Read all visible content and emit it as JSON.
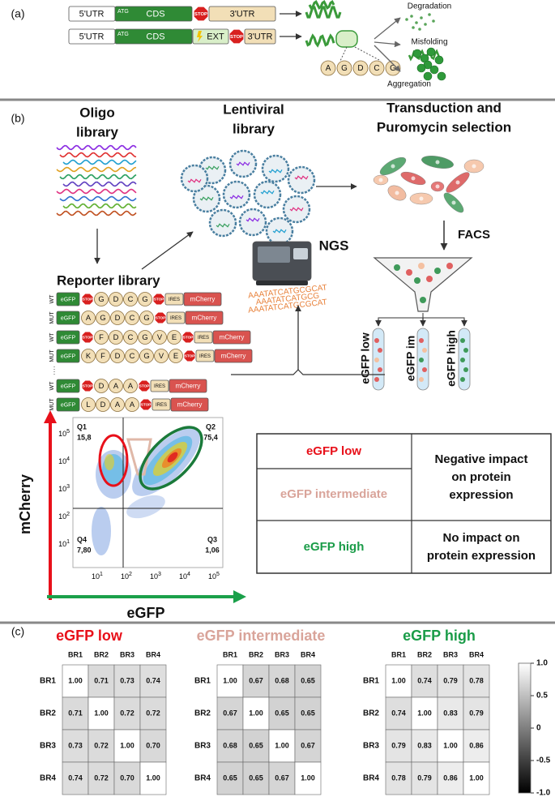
{
  "panel_a": {
    "label": "(a)",
    "construct_1": {
      "utr5": "5'UTR",
      "start": "ATG",
      "cds": "CDS",
      "stop": "STOP",
      "utr3": "3'UTR"
    },
    "construct_2": {
      "utr5": "5'UTR",
      "start": "ATG",
      "cds": "CDS",
      "ext": "EXT",
      "stop": "STOP",
      "utr3": "3'UTR"
    },
    "peptide": [
      "A",
      "G",
      "D",
      "C",
      "G"
    ],
    "outcomes": [
      "Degradation",
      "Misfolding",
      "Aggregation"
    ]
  },
  "panel_b": {
    "label": "(b)",
    "oligo_title": [
      "Oligo",
      "library"
    ],
    "lentiviral_title": [
      "Lentiviral",
      "library"
    ],
    "transduction_title": [
      "Transduction and",
      "Puromycin selection"
    ],
    "reporter_title": "Reporter library",
    "ngs": "NGS",
    "ngs_reads": [
      "AAATATCATGCGCAT",
      "AAATATCATGCG",
      "AAATATCATGCGCAT"
    ],
    "facs": "FACS",
    "bins": [
      "eGFP low",
      "eGFP im",
      "eGFP high"
    ],
    "reporters": [
      {
        "label": "WT",
        "tag": "eGFP",
        "lead_stop": "STOP",
        "residues": [
          "G",
          "D",
          "C",
          "G"
        ],
        "stop": "STOP",
        "ires": "IRES",
        "reporter": "mCherry"
      },
      {
        "label": "MUT",
        "tag": "eGFP",
        "lead_residue": "A",
        "residues": [
          "G",
          "D",
          "C",
          "G"
        ],
        "stop": "STOP",
        "ires": "IRES",
        "reporter": "mCherry"
      },
      {
        "label": "WT",
        "tag": "eGFP",
        "lead_stop": "STOP",
        "residues": [
          "F",
          "D",
          "C",
          "G",
          "V",
          "E"
        ],
        "stop": "STOP",
        "ires": "IRES",
        "reporter": "mCherry"
      },
      {
        "label": "MUT",
        "tag": "eGFP",
        "lead_residue": "K",
        "residues": [
          "F",
          "D",
          "C",
          "G",
          "V",
          "E"
        ],
        "stop": "STOP",
        "ires": "IRES",
        "reporter": "mCherry"
      },
      {
        "label": "WT",
        "tag": "eGFP",
        "lead_stop": "STOP",
        "residues": [
          "D",
          "A",
          "A"
        ],
        "stop": "STOP",
        "ires": "IRES",
        "reporter": "mCherry"
      },
      {
        "label": "MUT",
        "tag": "eGFP",
        "lead_residue": "L",
        "residues": [
          "D",
          "A",
          "A"
        ],
        "stop": "STOP",
        "ires": "IRES",
        "reporter": "mCherry"
      }
    ],
    "flow_plot": {
      "y_label": "mCherry",
      "x_label": "eGFP",
      "tick_base": "10",
      "tick_exponents": [
        "1",
        "2",
        "3",
        "4",
        "5"
      ],
      "quadrants": [
        {
          "name": "Q1",
          "value": "15,8"
        },
        {
          "name": "Q2",
          "value": "75,4"
        },
        {
          "name": "Q4",
          "value": "7,80"
        },
        {
          "name": "Q3",
          "value": "1,06"
        }
      ]
    },
    "table": {
      "rows": [
        [
          "eGFP low",
          [
            "Negative impact",
            "on protein",
            "expression"
          ]
        ],
        [
          "eGFP intermediate"
        ],
        [
          "eGFP high",
          [
            "No impact on",
            "protein expression"
          ]
        ]
      ],
      "colors": [
        "#e8101a",
        "#d9a49a",
        "#1a9c48"
      ]
    }
  },
  "panel_c": {
    "label": "(c)",
    "labels": [
      "BR1",
      "BR2",
      "BR3",
      "BR4"
    ],
    "colorbar_ticks": [
      "1.0",
      "0.5",
      "0",
      "-0.5",
      "-1.0"
    ],
    "heatmaps": [
      {
        "title": "eGFP low",
        "color": "#e8101a",
        "matrix": [
          [
            "1.00",
            "0.71",
            "0.73",
            "0.74"
          ],
          [
            "0.71",
            "1.00",
            "0.72",
            "0.72"
          ],
          [
            "0.73",
            "0.72",
            "1.00",
            "0.70"
          ],
          [
            "0.74",
            "0.72",
            "0.70",
            "1.00"
          ]
        ]
      },
      {
        "title": "eGFP intermediate",
        "color": "#d9a49a",
        "matrix": [
          [
            "1.00",
            "0.67",
            "0.68",
            "0.65"
          ],
          [
            "0.67",
            "1.00",
            "0.65",
            "0.65"
          ],
          [
            "0.68",
            "0.65",
            "1.00",
            "0.67"
          ],
          [
            "0.65",
            "0.65",
            "0.67",
            "1.00"
          ]
        ]
      },
      {
        "title": "eGFP high",
        "color": "#1a9c48",
        "matrix": [
          [
            "1.00",
            "0.74",
            "0.79",
            "0.78"
          ],
          [
            "0.74",
            "1.00",
            "0.83",
            "0.79"
          ],
          [
            "0.79",
            "0.83",
            "1.00",
            "0.86"
          ],
          [
            "0.78",
            "0.79",
            "0.86",
            "1.00"
          ]
        ]
      }
    ]
  }
}
